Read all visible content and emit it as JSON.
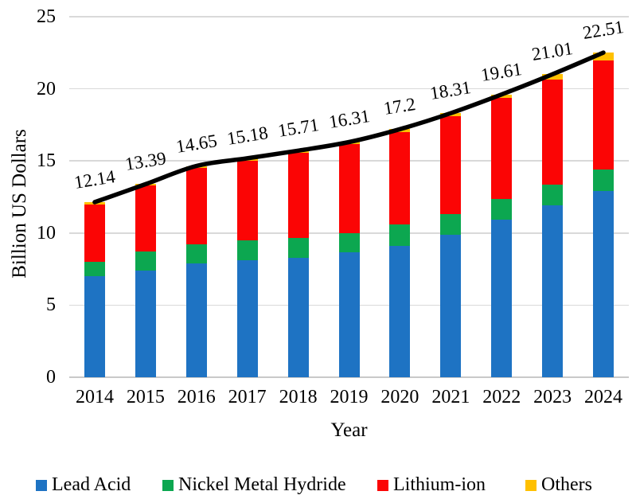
{
  "chart_data": {
    "type": "bar",
    "subtype": "stacked-bar-with-total-line",
    "title": "",
    "xlabel": "Year",
    "ylabel": "Billion US Dollars",
    "ylim": [
      0,
      25
    ],
    "yticks": [
      0,
      5,
      10,
      15,
      20,
      25
    ],
    "grid": "horizontal",
    "legend_position": "bottom",
    "categories": [
      "2014",
      "2015",
      "2016",
      "2017",
      "2018",
      "2019",
      "2020",
      "2021",
      "2022",
      "2023",
      "2024"
    ],
    "series": [
      {
        "name": "Lead Acid",
        "color": "#1E73C3",
        "values": [
          7.0,
          7.4,
          7.9,
          8.1,
          8.3,
          8.65,
          9.1,
          9.9,
          10.9,
          11.9,
          12.9
        ]
      },
      {
        "name": "Nickel Metal Hydride",
        "color": "#0CA750",
        "values": [
          1.0,
          1.3,
          1.3,
          1.4,
          1.35,
          1.35,
          1.5,
          1.4,
          1.45,
          1.45,
          1.5
        ]
      },
      {
        "name": "Lithium-ion",
        "color": "#FB0505",
        "values": [
          4.0,
          4.59,
          5.3,
          5.53,
          5.91,
          6.15,
          6.4,
          6.8,
          7.0,
          7.3,
          7.58
        ]
      },
      {
        "name": "Others",
        "color": "#FFC000",
        "values": [
          0.14,
          0.1,
          0.15,
          0.15,
          0.15,
          0.16,
          0.2,
          0.21,
          0.26,
          0.36,
          0.53
        ]
      }
    ],
    "total_line": {
      "name": "Total",
      "color": "#000000",
      "values": [
        12.14,
        13.39,
        14.65,
        15.18,
        15.71,
        16.31,
        17.2,
        18.31,
        19.61,
        21.01,
        22.51
      ]
    },
    "data_labels": [
      "12.14",
      "13.39",
      "14.65",
      "15.18",
      "15.71",
      "16.31",
      "17.2",
      "18.31",
      "19.61",
      "21.01",
      "22.51"
    ]
  }
}
